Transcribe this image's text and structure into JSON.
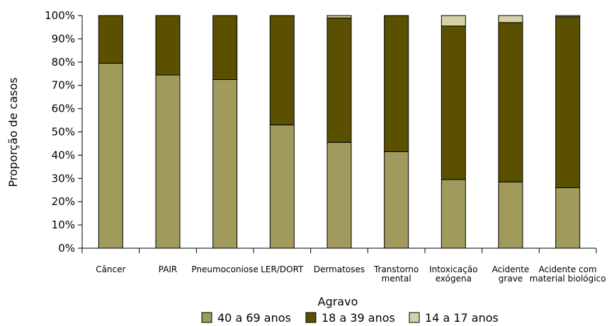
{
  "chart_data": {
    "type": "bar",
    "stacked": true,
    "normalized": true,
    "xlabel": "Agravo",
    "ylabel": "Proporção de casos",
    "ylim": [
      0,
      100
    ],
    "yticks": [
      "0%",
      "10%",
      "20%",
      "30%",
      "40%",
      "50%",
      "60%",
      "70%",
      "80%",
      "90%",
      "100%"
    ],
    "categories": [
      [
        "Câncer"
      ],
      [
        "PAIR"
      ],
      [
        "Pneumoconiose"
      ],
      [
        "LER/DORT"
      ],
      [
        "Dermatoses"
      ],
      [
        "Transtorno",
        "mental"
      ],
      [
        "Intoxicação",
        "exógena"
      ],
      [
        "Acidente",
        "grave"
      ],
      [
        "Acidente com",
        "material biológico"
      ]
    ],
    "series": [
      {
        "name": "40 a 69 anos",
        "color": "#a09a5c",
        "values": [
          79.5,
          74.5,
          72.5,
          53.0,
          45.5,
          41.5,
          29.5,
          28.5,
          26.0
        ]
      },
      {
        "name": "18 a 39 anos",
        "color": "#5a5000",
        "values": [
          20.5,
          25.5,
          27.5,
          47.0,
          53.5,
          58.5,
          66.0,
          68.5,
          73.5
        ]
      },
      {
        "name": "14 a 17 anos",
        "color": "#d6d2a8",
        "values": [
          0.0,
          0.0,
          0.0,
          0.0,
          1.0,
          0.0,
          4.5,
          3.0,
          0.5
        ]
      }
    ],
    "legend_position": "bottom",
    "grid": false
  }
}
